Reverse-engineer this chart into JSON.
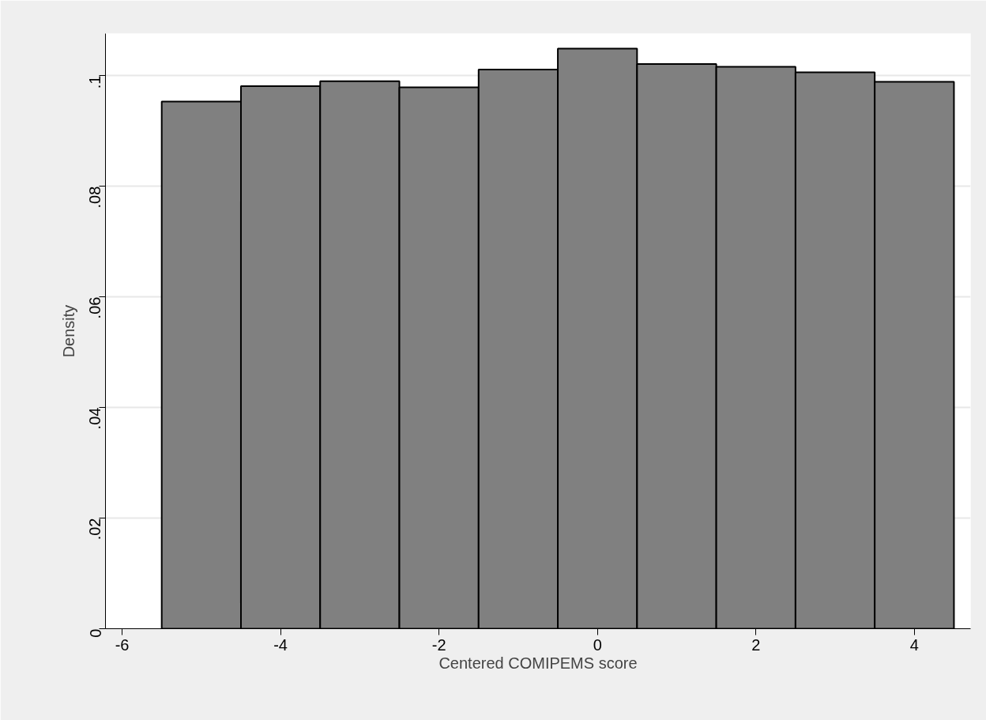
{
  "chart_data": {
    "type": "histogram",
    "xlabel": "Centered COMIPEMS score",
    "ylabel": "Density",
    "bins": [
      -5.5,
      -4.5,
      -3.5,
      -2.5,
      -1.5,
      -0.5,
      0.5,
      1.5,
      2.5,
      3.5,
      4.5
    ],
    "values": [
      0.0953,
      0.0981,
      0.099,
      0.0979,
      0.1011,
      0.1049,
      0.1021,
      0.1016,
      0.1006,
      0.0989
    ],
    "color": "#808080",
    "xlim": [
      -6.21,
      4.71
    ],
    "ylim": [
      0,
      0.1076
    ],
    "xticks": [
      -6,
      -4,
      -2,
      0,
      2,
      4
    ],
    "yticks": [
      0,
      {
        "value": 0.02,
        "label": ".02"
      },
      {
        "value": 0.04,
        "label": ".04"
      },
      {
        "value": 0.06,
        "label": ".06"
      },
      {
        "value": 0.08,
        "label": ".08"
      },
      {
        "value": 0.1,
        "label": ".1"
      }
    ],
    "grid": "y"
  }
}
